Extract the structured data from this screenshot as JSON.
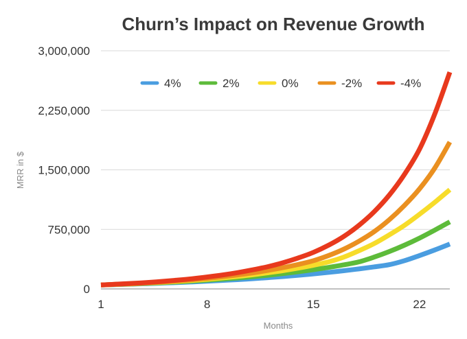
{
  "chart_data": {
    "type": "line",
    "title": "Churn’s Impact on Revenue Growth",
    "xlabel": "Months",
    "ylabel": "MRR in $",
    "x_ticks": [
      "1",
      "8",
      "15",
      "22"
    ],
    "y_ticks": [
      "0",
      "750,000",
      "1,500,000",
      "2,250,000",
      "3,000,000"
    ],
    "y_tick_values": [
      0,
      750000,
      1500000,
      2250000,
      3000000
    ],
    "xlim": [
      1,
      24
    ],
    "ylim": [
      0,
      3000000
    ],
    "grid": "horizontal",
    "legend_position": "top",
    "x": [
      1,
      2,
      3,
      4,
      5,
      6,
      7,
      8,
      9,
      10,
      11,
      12,
      13,
      14,
      15,
      16,
      17,
      18,
      19,
      20,
      21,
      22,
      23,
      24
    ],
    "series": [
      {
        "name": "4%",
        "color": "#4a9de0",
        "values": [
          50000,
          55000,
          60000,
          66000,
          73000,
          80000,
          88000,
          97000,
          107000,
          117000,
          129000,
          142000,
          156000,
          172000,
          189000,
          208000,
          229000,
          252000,
          277000,
          305000,
          355000,
          420000,
          490000,
          565000
        ]
      },
      {
        "name": "2%",
        "color": "#5dbb3a",
        "values": [
          50000,
          56000,
          62000,
          70000,
          78000,
          88000,
          98000,
          110000,
          123000,
          137000,
          154000,
          172000,
          193000,
          216000,
          242000,
          271000,
          303000,
          340000,
          400000,
          470000,
          550000,
          640000,
          740000,
          845000
        ]
      },
      {
        "name": "0%",
        "color": "#f7dc2a",
        "values": [
          50000,
          57000,
          64000,
          73000,
          83000,
          94000,
          107000,
          121000,
          138000,
          157000,
          178000,
          203000,
          230000,
          262000,
          298000,
          340000,
          400000,
          480000,
          570000,
          680000,
          800000,
          940000,
          1090000,
          1250000
        ]
      },
      {
        "name": "-2%",
        "color": "#ea9020",
        "values": [
          50000,
          58000,
          66000,
          76000,
          88000,
          101000,
          116000,
          133000,
          153000,
          176000,
          202000,
          233000,
          268000,
          308000,
          355000,
          420000,
          500000,
          600000,
          720000,
          870000,
          1050000,
          1260000,
          1520000,
          1850000
        ]
      },
      {
        "name": "-4%",
        "color": "#e8391d",
        "values": [
          50000,
          59000,
          69000,
          80000,
          94000,
          110000,
          128000,
          150000,
          175000,
          205000,
          240000,
          280000,
          330000,
          390000,
          460000,
          550000,
          660000,
          800000,
          970000,
          1180000,
          1440000,
          1760000,
          2200000,
          2730000
        ]
      }
    ]
  }
}
